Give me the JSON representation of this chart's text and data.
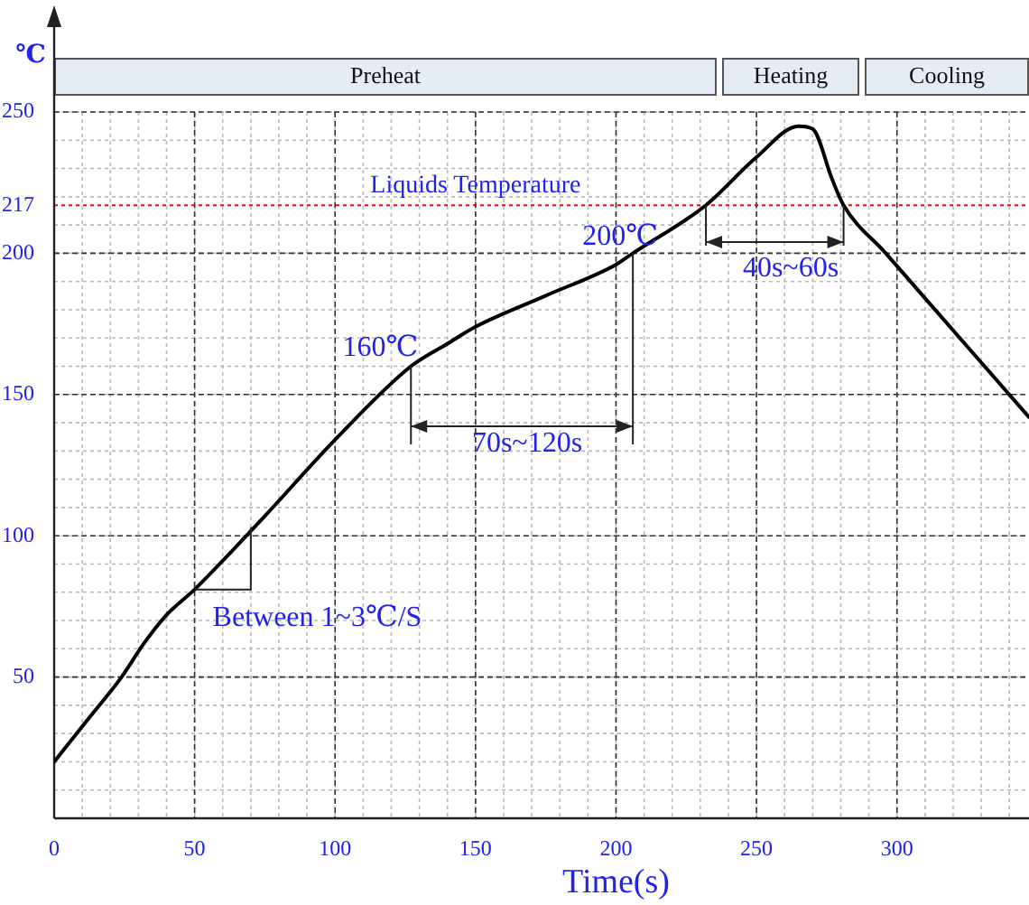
{
  "chart_data": {
    "type": "line",
    "xlabel": "Time(s)",
    "ylabel": "℃",
    "x": [
      0,
      12,
      24,
      32,
      40,
      50,
      75,
      100,
      127,
      140,
      150,
      175,
      200,
      206,
      232,
      250,
      265,
      270,
      277,
      281,
      296,
      347
    ],
    "series": [
      {
        "color": "#000000",
        "values": [
          20,
          35,
          50,
          62,
          72,
          81,
          107,
          134,
          160,
          168,
          174,
          185,
          196,
          200,
          217,
          234,
          245,
          244,
          226,
          217,
          200,
          142
        ]
      }
    ],
    "xlim": [
      0,
      347
    ],
    "xticks": [
      0,
      50,
      100,
      150,
      200,
      250,
      300
    ],
    "ylim": [
      0,
      250
    ],
    "yticks": [
      50,
      100,
      150,
      200,
      217,
      250
    ],
    "grid": true,
    "legend": false,
    "marker": "none",
    "line_style": "solid",
    "ref_lines": [
      {
        "axis": "y",
        "value": 217,
        "label": "Liquids Temperature",
        "color": "#ff0000",
        "line_style": "dotted"
      }
    ],
    "annotations": [
      {
        "text": "160℃",
        "x": 127,
        "y": 160
      },
      {
        "text": "200℃",
        "x": 206,
        "y": 200
      },
      "70s~120s",
      "40s~60s",
      {
        "text": "Between 1~3℃/S",
        "x": 50,
        "y": 81
      },
      "Preheat",
      "Heating",
      "Cooling"
    ]
  }
}
